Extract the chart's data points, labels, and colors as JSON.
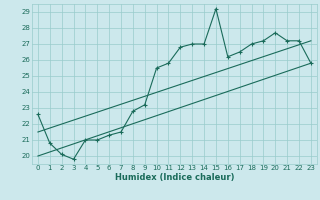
{
  "xlabel": "Humidex (Indice chaleur)",
  "background_color": "#cce8ec",
  "grid_color": "#99cccc",
  "line_color": "#1a6b5a",
  "xlim": [
    -0.5,
    23.5
  ],
  "ylim": [
    19.5,
    29.5
  ],
  "xticks": [
    0,
    1,
    2,
    3,
    4,
    5,
    6,
    7,
    8,
    9,
    10,
    11,
    12,
    13,
    14,
    15,
    16,
    17,
    18,
    19,
    20,
    21,
    22,
    23
  ],
  "yticks": [
    20,
    21,
    22,
    23,
    24,
    25,
    26,
    27,
    28,
    29
  ],
  "main_line_x": [
    0,
    1,
    2,
    3,
    4,
    5,
    6,
    7,
    8,
    9,
    10,
    11,
    12,
    13,
    14,
    15,
    16,
    17,
    18,
    19,
    20,
    21,
    22,
    23
  ],
  "main_line_y": [
    22.6,
    20.8,
    20.1,
    19.8,
    21.0,
    21.0,
    21.3,
    21.5,
    22.8,
    23.2,
    25.5,
    25.8,
    26.8,
    27.0,
    27.0,
    29.2,
    26.2,
    26.5,
    27.0,
    27.2,
    27.7,
    27.2,
    27.2,
    25.8
  ],
  "lower_line_x": [
    0,
    23
  ],
  "lower_line_y": [
    20.0,
    25.8
  ],
  "upper_line_x": [
    0,
    23
  ],
  "upper_line_y": [
    21.5,
    27.2
  ]
}
